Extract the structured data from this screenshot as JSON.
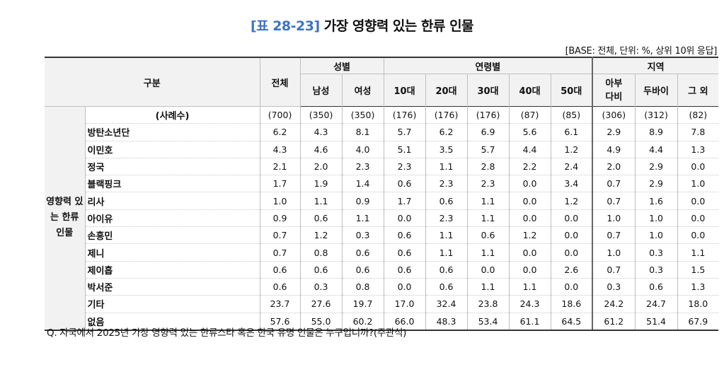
{
  "title": {
    "number": "[표 28-23]",
    "text": "가장 영향력 있는 한류 인물"
  },
  "base_note": "[BASE: 전체, 단위: %, 상위 10위 응답]",
  "header": {
    "gubun": "구분",
    "total": "전체",
    "gender": "성별",
    "age": "연령별",
    "region": "지역",
    "male": "남성",
    "female": "여성",
    "a10": "10대",
    "a20": "20대",
    "a30": "30대",
    "a40": "40대",
    "a50": "50대",
    "abudhabi_line1": "아부",
    "abudhabi_line2": "다비",
    "dubai": "두바이",
    "other": "그 외"
  },
  "side_label": "영향력 있는 한류 인물",
  "count_row": {
    "label": "(사례수)",
    "values": [
      "(700)",
      "(350)",
      "(350)",
      "(176)",
      "(176)",
      "(176)",
      "(87)",
      "(85)",
      "(306)",
      "(312)",
      "(82)"
    ]
  },
  "rows": [
    {
      "name": "방탄소년단",
      "values": [
        "6.2",
        "4.3",
        "8.1",
        "5.7",
        "6.2",
        "6.9",
        "5.6",
        "6.1",
        "2.9",
        "8.9",
        "7.8"
      ]
    },
    {
      "name": "이민호",
      "values": [
        "4.3",
        "4.6",
        "4.0",
        "5.1",
        "3.5",
        "5.7",
        "4.4",
        "1.2",
        "4.9",
        "4.4",
        "1.3"
      ]
    },
    {
      "name": "정국",
      "values": [
        "2.1",
        "2.0",
        "2.3",
        "2.3",
        "1.1",
        "2.8",
        "2.2",
        "2.4",
        "2.0",
        "2.9",
        "0.0"
      ]
    },
    {
      "name": "블랙핑크",
      "values": [
        "1.7",
        "1.9",
        "1.4",
        "0.6",
        "2.3",
        "2.3",
        "0.0",
        "3.4",
        "0.7",
        "2.9",
        "1.0"
      ]
    },
    {
      "name": "리사",
      "values": [
        "1.0",
        "1.1",
        "0.9",
        "1.7",
        "0.6",
        "1.1",
        "0.0",
        "1.2",
        "0.7",
        "1.6",
        "0.0"
      ]
    },
    {
      "name": "아이유",
      "values": [
        "0.9",
        "0.6",
        "1.1",
        "0.0",
        "2.3",
        "1.1",
        "0.0",
        "0.0",
        "1.0",
        "1.0",
        "0.0"
      ]
    },
    {
      "name": "손흥민",
      "values": [
        "0.7",
        "1.2",
        "0.3",
        "0.6",
        "1.1",
        "0.6",
        "1.2",
        "0.0",
        "0.7",
        "1.0",
        "0.0"
      ]
    },
    {
      "name": "제니",
      "values": [
        "0.7",
        "0.8",
        "0.6",
        "0.6",
        "1.1",
        "1.1",
        "0.0",
        "0.0",
        "1.0",
        "0.3",
        "1.1"
      ]
    },
    {
      "name": "제이홉",
      "values": [
        "0.6",
        "0.6",
        "0.6",
        "0.6",
        "0.6",
        "0.0",
        "0.0",
        "2.6",
        "0.7",
        "0.3",
        "1.5"
      ]
    },
    {
      "name": "박서준",
      "values": [
        "0.6",
        "0.3",
        "0.8",
        "0.0",
        "0.6",
        "1.1",
        "1.1",
        "0.0",
        "0.3",
        "0.6",
        "1.3"
      ]
    },
    {
      "name": "기타",
      "values": [
        "23.7",
        "27.6",
        "19.7",
        "17.0",
        "32.4",
        "23.8",
        "24.3",
        "18.6",
        "24.2",
        "24.7",
        "18.0"
      ]
    },
    {
      "name": "없음",
      "values": [
        "57.6",
        "55.0",
        "60.2",
        "66.0",
        "48.3",
        "53.4",
        "61.1",
        "64.5",
        "61.2",
        "51.4",
        "67.9"
      ]
    }
  ],
  "question": "Q. 자국에서 2025년 가장 영향력 있는 한류스타 혹은 한국 유명 인물은 누구입니까?(주관식)"
}
